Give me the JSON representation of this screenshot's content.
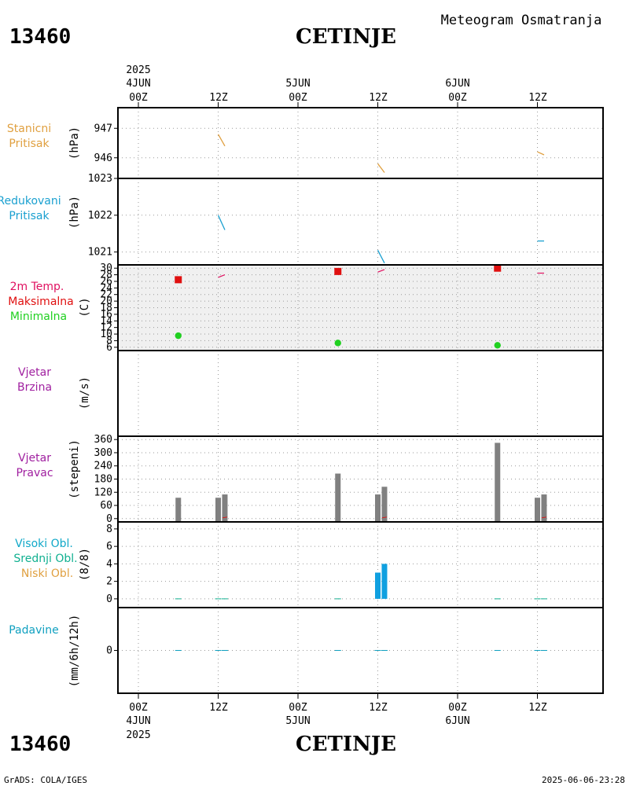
{
  "header": {
    "station_id": "13460",
    "station_name": "CETINJE",
    "title": "Meteogram Osmatranja"
  },
  "time_axis": {
    "year": "2025",
    "hour_labels": [
      "00Z",
      "12Z",
      "00Z",
      "12Z",
      "00Z",
      "12Z"
    ],
    "day_labels": [
      "4JUN",
      "5JUN",
      "6JUN"
    ],
    "start": "2025-06-04T00Z",
    "end": "2025-06-07T00Z"
  },
  "footer": {
    "left": "GrADS: COLA/IGES",
    "right": "2025-06-06-23:28"
  },
  "colors": {
    "station_pressure": "#e0a040",
    "reduced_pressure": "#1aa0d0",
    "tmax": "#e01010",
    "tmin": "#20d020",
    "temp_label": "#e01060",
    "wind": "#a020a0",
    "high_cloud": "#10a8c8",
    "mid_cloud": "#10b090",
    "low_cloud": "#e0a040",
    "precip": "#10a0c0",
    "bar_gray": "#808080",
    "cloud_bar": "#10a0e0"
  },
  "chart_data": [
    {
      "type": "line",
      "id": "stanicni",
      "labels": [
        "Stanicni",
        "Pritisak"
      ],
      "ylabel": "(hPa)",
      "yticks": [
        946,
        947
      ],
      "ylim": [
        945.3,
        947.7
      ],
      "series": [
        {
          "x": [
            "2025-06-04T12:00",
            "2025-06-04T13:00"
          ],
          "y": [
            946.8,
            946.4
          ]
        },
        {
          "x": [
            "2025-06-05T12:00",
            "2025-06-05T13:00"
          ],
          "y": [
            945.8,
            945.5
          ]
        },
        {
          "x": [
            "2025-06-06T12:00",
            "2025-06-06T13:00"
          ],
          "y": [
            946.2,
            946.1
          ]
        }
      ]
    },
    {
      "type": "line",
      "id": "redukovani",
      "labels": [
        "Redukovani",
        "Pritisak"
      ],
      "ylabel": "(hPa)",
      "yticks": [
        1021,
        1022,
        1023
      ],
      "ylim": [
        1020.65,
        1023.0
      ],
      "series": [
        {
          "x": [
            "2025-06-04T12:00",
            "2025-06-04T13:00"
          ],
          "y": [
            1022.0,
            1021.6
          ]
        },
        {
          "x": [
            "2025-06-05T12:00",
            "2025-06-05T13:00"
          ],
          "y": [
            1021.05,
            1020.7
          ]
        },
        {
          "x": [
            "2025-06-06T12:00",
            "2025-06-06T13:00"
          ],
          "y": [
            1021.3,
            1021.3
          ]
        }
      ]
    },
    {
      "type": "scatter",
      "id": "temperatura",
      "labels": [
        "2m Temp.",
        "Maksimalna",
        "Minimalna"
      ],
      "ylabel": "(C)",
      "yticks": [
        6,
        8,
        10,
        12,
        14,
        16,
        18,
        20,
        22,
        24,
        26,
        28,
        30
      ],
      "ylim": [
        5,
        31
      ],
      "max_points": [
        {
          "x": "2025-06-04T06:00",
          "y": 26.5
        },
        {
          "x": "2025-06-05T06:00",
          "y": 29.0
        },
        {
          "x": "2025-06-06T06:00",
          "y": 30.0
        }
      ],
      "min_points": [
        {
          "x": "2025-06-04T06:00",
          "y": 9.5
        },
        {
          "x": "2025-06-05T06:00",
          "y": 7.3
        },
        {
          "x": "2025-06-06T06:00",
          "y": 6.6
        }
      ],
      "temp_lines": [
        {
          "x": [
            "2025-06-04T12:00",
            "2025-06-04T13:00"
          ],
          "y": [
            27.2,
            28.0
          ]
        },
        {
          "x": [
            "2025-06-05T12:00",
            "2025-06-05T13:00"
          ],
          "y": [
            28.8,
            29.6
          ]
        },
        {
          "x": [
            "2025-06-06T12:00",
            "2025-06-06T13:00"
          ],
          "y": [
            28.5,
            28.5
          ]
        }
      ]
    },
    {
      "type": "line",
      "id": "brzina",
      "labels": [
        "Vjetar",
        "Brzina"
      ],
      "ylabel": "(m/s)",
      "series": []
    },
    {
      "type": "bar",
      "id": "pravac",
      "labels": [
        "Vjetar",
        "Pravac"
      ],
      "ylabel": "(stepeni)",
      "yticks": [
        0,
        60,
        120,
        180,
        240,
        300,
        360
      ],
      "ylim": [
        -15,
        375
      ],
      "bars": [
        {
          "x": "2025-06-04T06:00",
          "value": 95
        },
        {
          "x": "2025-06-04T12:00",
          "value": 95
        },
        {
          "x": "2025-06-04T13:00",
          "value": 110
        },
        {
          "x": "2025-06-05T06:00",
          "value": 205
        },
        {
          "x": "2025-06-05T12:00",
          "value": 110
        },
        {
          "x": "2025-06-05T13:00",
          "value": 145
        },
        {
          "x": "2025-06-06T06:00",
          "value": 345
        },
        {
          "x": "2025-06-06T12:00",
          "value": 95
        },
        {
          "x": "2025-06-06T13:00",
          "value": 110
        }
      ]
    },
    {
      "type": "bar",
      "id": "oblacnost",
      "labels": [
        "Visoki Obl.",
        "Srednji Obl.",
        "Niski Obl."
      ],
      "ylabel": "(8/8)",
      "yticks": [
        0,
        2,
        4,
        6,
        8
      ],
      "ylim": [
        -1,
        8.8
      ],
      "bars": [
        {
          "x": "2025-06-05T12:00",
          "value": 3
        },
        {
          "x": "2025-06-05T13:00",
          "value": 4
        }
      ],
      "zero_marks": [
        "2025-06-04T06:00",
        "2025-06-04T12:00",
        "2025-06-04T13:00",
        "2025-06-05T06:00",
        "2025-06-06T06:00",
        "2025-06-06T12:00",
        "2025-06-06T13:00"
      ]
    },
    {
      "type": "bar",
      "id": "padavine",
      "labels": [
        "Padavine"
      ],
      "ylabel": "(mm/6h/12h)",
      "yticks": [
        0
      ],
      "ylim": [
        -5,
        5
      ],
      "zero_marks": [
        "2025-06-04T06:00",
        "2025-06-04T12:00",
        "2025-06-04T13:00",
        "2025-06-05T06:00",
        "2025-06-05T12:00",
        "2025-06-05T13:00",
        "2025-06-06T06:00",
        "2025-06-06T12:00",
        "2025-06-06T13:00"
      ]
    }
  ]
}
